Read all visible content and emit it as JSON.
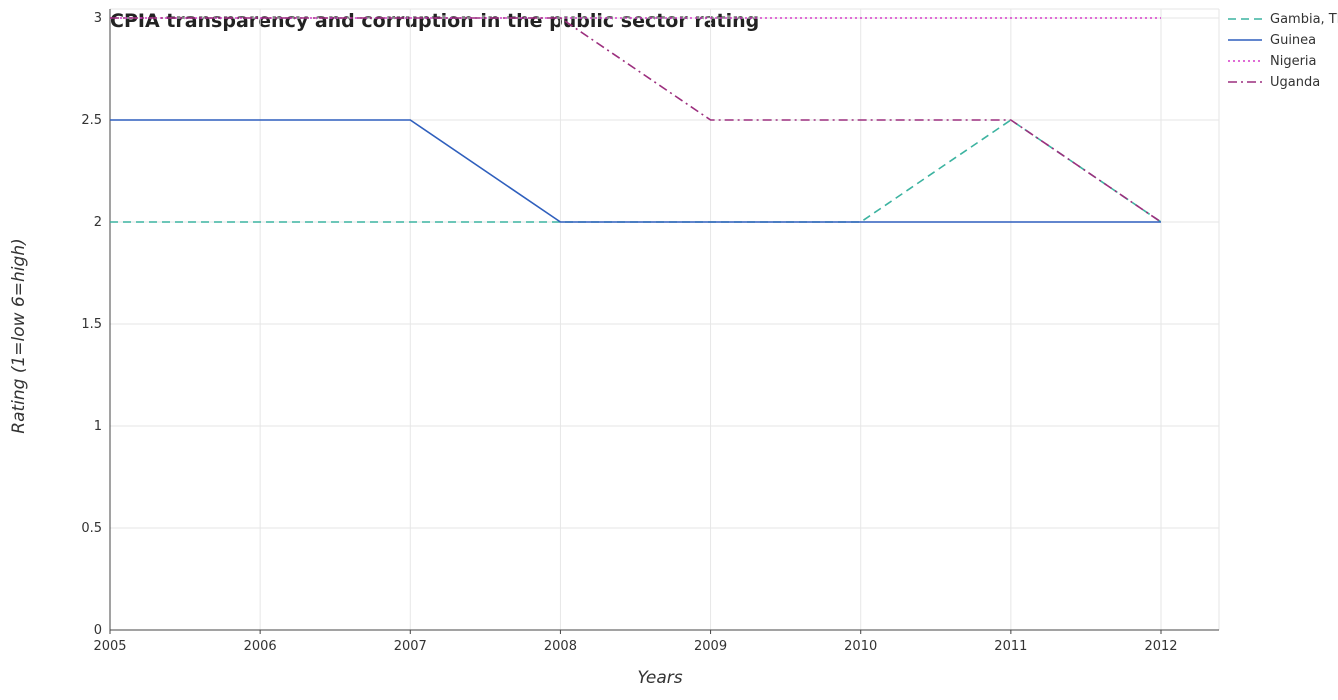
{
  "chart_data": {
    "type": "line",
    "title": "CPIA transparency and corruption in the public sector rating",
    "xlabel": "Years",
    "ylabel": "Rating (1=low 6=high)",
    "x": [
      "2005",
      "2006",
      "2007",
      "2008",
      "2009",
      "2010",
      "2011",
      "2012"
    ],
    "ylim": [
      0,
      3
    ],
    "yticks": [
      "0",
      "0.5",
      "1",
      "1.5",
      "2",
      "2.5",
      "3"
    ],
    "grid": true,
    "legend_position": "top-right",
    "series": [
      {
        "name": "Gambia, The",
        "color": "#3cb3a0",
        "dash": "dashed",
        "values": [
          2,
          2,
          2,
          2,
          2,
          2,
          2.5,
          2
        ]
      },
      {
        "name": "Guinea",
        "color": "#2f5fbd",
        "dash": "solid",
        "values": [
          2.5,
          2.5,
          2.5,
          2,
          2,
          2,
          2,
          2
        ]
      },
      {
        "name": "Nigeria",
        "color": "#d63ac9",
        "dash": "dotted",
        "values": [
          3,
          3,
          3,
          3,
          3,
          3,
          3,
          3
        ]
      },
      {
        "name": "Uganda",
        "color": "#9c2f7e",
        "dash": "dashdot",
        "values": [
          3,
          3,
          3,
          3,
          2.5,
          2.5,
          2.5,
          2
        ]
      }
    ]
  }
}
